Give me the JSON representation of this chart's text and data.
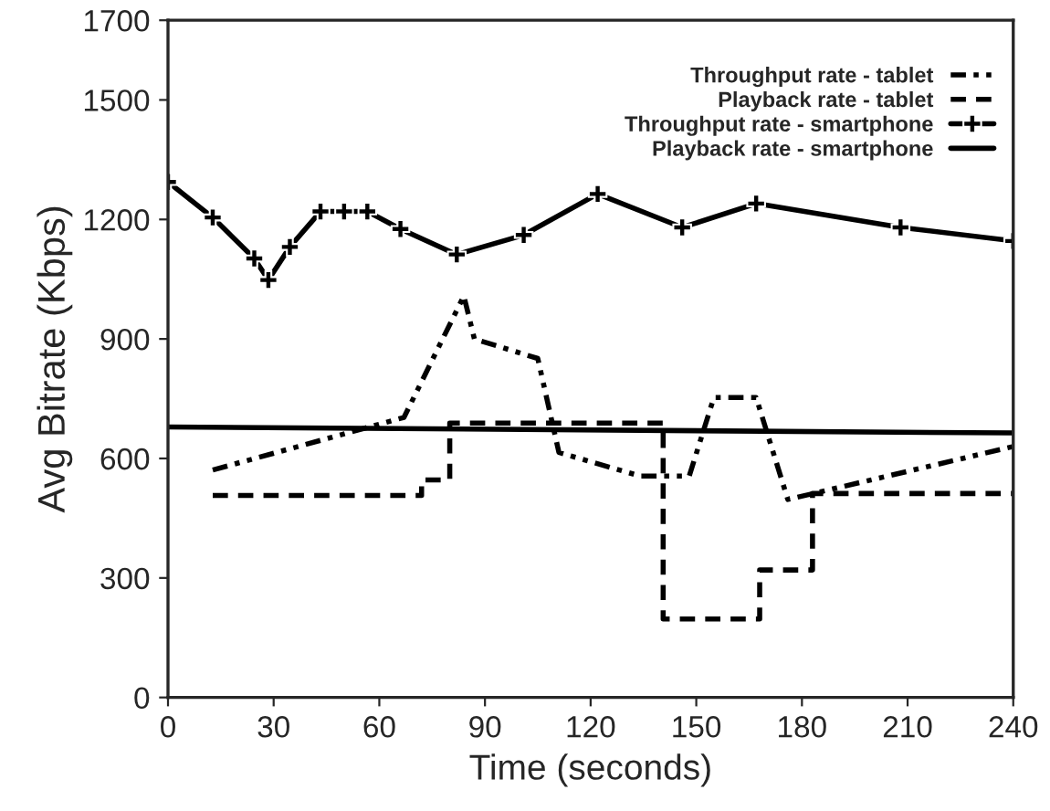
{
  "chart_data": {
    "type": "line",
    "xlabel": "Time (seconds)",
    "ylabel": "Avg Bitrate (Kbps)",
    "xlim": [
      0,
      240
    ],
    "xticks": [
      0,
      30,
      60,
      90,
      120,
      150,
      180,
      210,
      240
    ],
    "ylim": [
      0,
      1700
    ],
    "yticks": [
      0,
      300,
      600,
      900,
      1200,
      1500,
      1700
    ],
    "grid": false,
    "legend": "top right",
    "series": [
      {
        "name": "Throughput rate - tablet",
        "color": "#000000",
        "line_style": "dashdot",
        "marker": "none",
        "x": [
          12.7,
          67,
          84,
          87,
          105,
          111,
          134,
          148,
          155,
          167,
          176,
          240
        ],
        "values": [
          571,
          703,
          1008,
          900,
          851,
          615,
          556,
          556,
          753,
          753,
          497,
          630
        ]
      },
      {
        "name": "Playback rate - tablet",
        "type": "step",
        "color": "#000000",
        "line_style": "dashed",
        "marker": "none",
        "x": [
          12.7,
          72,
          80,
          140.6,
          168,
          183,
          240
        ],
        "values": [
          507,
          546,
          689,
          197,
          320,
          512,
          512
        ]
      },
      {
        "name": "Throughput rate - smartphone",
        "color": "#000000",
        "line_style": "solid",
        "marker": "cross",
        "x": [
          0,
          12.7,
          24.5,
          28.5,
          34.6,
          43.3,
          50,
          56.6,
          66,
          82,
          101,
          122,
          146,
          167,
          208,
          240
        ],
        "values": [
          1294,
          1205,
          1102,
          1048,
          1131,
          1220,
          1220,
          1220,
          1176,
          1112,
          1161,
          1264,
          1180,
          1240,
          1180,
          1146
        ]
      },
      {
        "name": "Playback rate - smartphone",
        "color": "#000000",
        "line_style": "solid",
        "marker": "none",
        "x": [
          0,
          240
        ],
        "values": [
          679,
          664
        ]
      }
    ]
  }
}
